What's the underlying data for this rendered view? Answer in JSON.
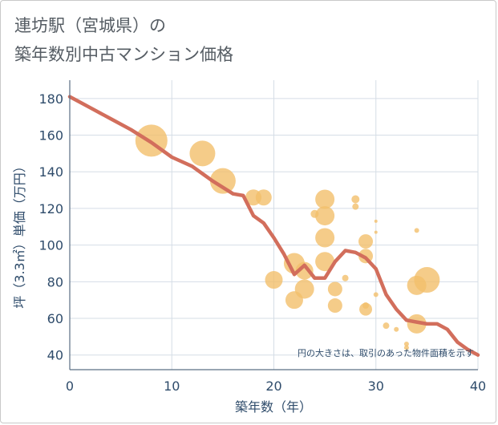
{
  "title_line1": "連坊駅（宮城県）の",
  "title_line2": "築年数別中古マンション価格",
  "colors": {
    "bubble": "#f2bf6c",
    "line": "#d26e5c",
    "grid": "#d5dde6",
    "text": "#2f4c6b"
  },
  "chart_data": {
    "type": "scatter",
    "title": "連坊駅（宮城県）の築年数別中古マンション価格",
    "xlabel": "築年数（年）",
    "ylabel": "坪（3.3㎡）単価（万円）",
    "xlim": [
      0,
      40
    ],
    "ylim": [
      32,
      190
    ],
    "xticks": [
      0,
      10,
      20,
      30,
      40
    ],
    "yticks": [
      40,
      60,
      80,
      100,
      120,
      140,
      160,
      180
    ],
    "annotation": "円の大きさは、取引のあった物件面積を示す",
    "bubbles": [
      {
        "x": 8,
        "y": 157,
        "size": 20
      },
      {
        "x": 13,
        "y": 150,
        "size": 16
      },
      {
        "x": 15,
        "y": 135,
        "size": 16
      },
      {
        "x": 18,
        "y": 126,
        "size": 10
      },
      {
        "x": 19,
        "y": 126,
        "size": 10
      },
      {
        "x": 20,
        "y": 81,
        "size": 11
      },
      {
        "x": 22,
        "y": 90,
        "size": 13
      },
      {
        "x": 22,
        "y": 70,
        "size": 11
      },
      {
        "x": 23,
        "y": 76,
        "size": 12
      },
      {
        "x": 23,
        "y": 86,
        "size": 11
      },
      {
        "x": 24,
        "y": 117,
        "size": 5
      },
      {
        "x": 25,
        "y": 125,
        "size": 12
      },
      {
        "x": 25,
        "y": 116,
        "size": 12
      },
      {
        "x": 25,
        "y": 104,
        "size": 12
      },
      {
        "x": 25,
        "y": 91,
        "size": 12
      },
      {
        "x": 26,
        "y": 76,
        "size": 9
      },
      {
        "x": 26,
        "y": 67,
        "size": 9
      },
      {
        "x": 27,
        "y": 82,
        "size": 4
      },
      {
        "x": 28,
        "y": 125,
        "size": 5
      },
      {
        "x": 28,
        "y": 121,
        "size": 4
      },
      {
        "x": 29,
        "y": 102,
        "size": 9
      },
      {
        "x": 29,
        "y": 94,
        "size": 9
      },
      {
        "x": 29,
        "y": 65,
        "size": 8
      },
      {
        "x": 29,
        "y": 67,
        "size": 4
      },
      {
        "x": 30,
        "y": 113,
        "size": 2
      },
      {
        "x": 30,
        "y": 107,
        "size": 2
      },
      {
        "x": 30,
        "y": 73,
        "size": 3
      },
      {
        "x": 31,
        "y": 56,
        "size": 4
      },
      {
        "x": 32,
        "y": 54,
        "size": 3
      },
      {
        "x": 33,
        "y": 46,
        "size": 3
      },
      {
        "x": 33,
        "y": 44,
        "size": 3
      },
      {
        "x": 34,
        "y": 108,
        "size": 3
      },
      {
        "x": 34,
        "y": 78,
        "size": 12
      },
      {
        "x": 34,
        "y": 57,
        "size": 12
      },
      {
        "x": 35,
        "y": 81,
        "size": 16
      }
    ],
    "trend_line": {
      "x": [
        0,
        2,
        4,
        6,
        8,
        10,
        12,
        14,
        16,
        17,
        18,
        19,
        20,
        21,
        22,
        23,
        24,
        25,
        26,
        27,
        28,
        29,
        30,
        31,
        32,
        33,
        34,
        35,
        36,
        37,
        38,
        39,
        40
      ],
      "y": [
        181,
        175,
        169,
        163,
        156,
        148,
        143,
        135,
        128,
        127,
        116,
        112,
        104,
        95,
        84,
        89,
        82,
        82,
        91,
        97,
        96,
        93,
        87,
        73,
        65,
        59,
        58,
        57,
        57,
        54,
        47,
        43,
        40
      ]
    }
  }
}
